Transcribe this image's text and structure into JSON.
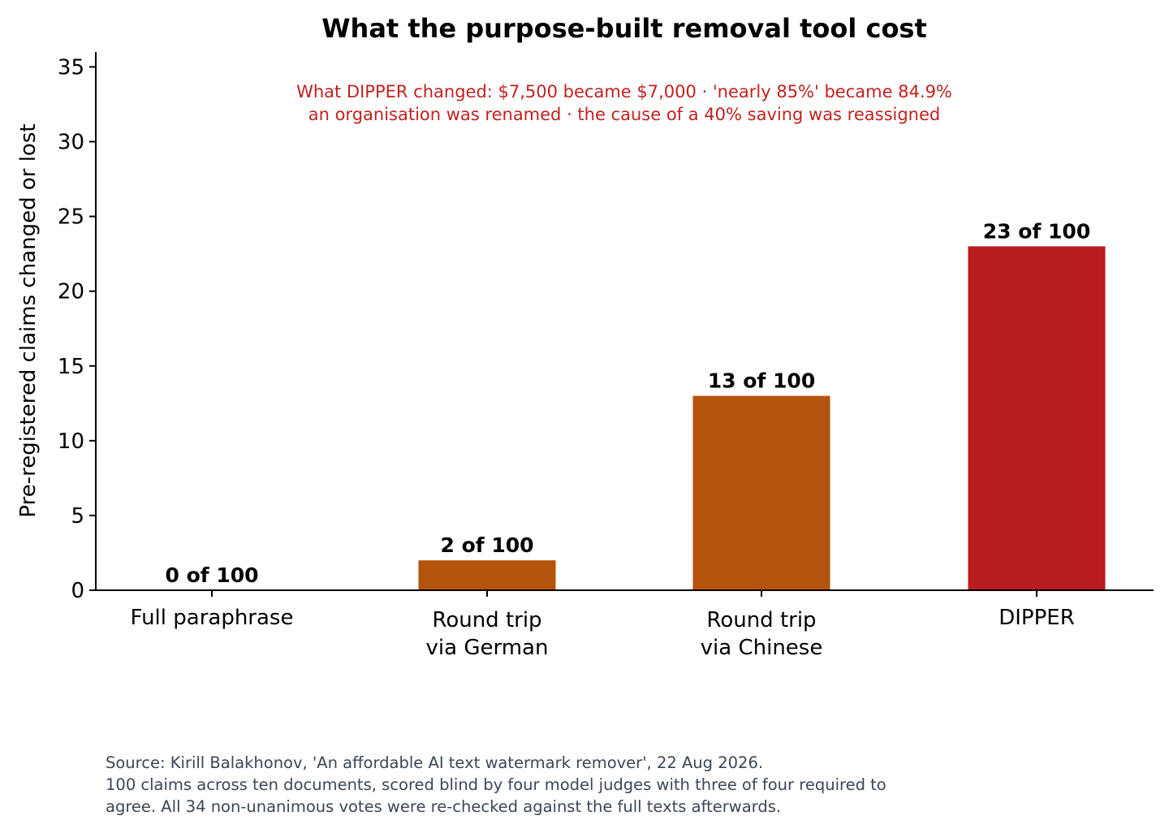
{
  "chart_data": {
    "type": "bar",
    "title": "What the purpose-built removal tool cost",
    "annotation": [
      "What DIPPER changed:  $7,500 became $7,000  ·  'nearly 85%' became 84.9%",
      "an organisation was renamed  ·  the cause of a 40% saving was reassigned"
    ],
    "ylabel": "Pre-registered claims changed or lost",
    "xlabel": "",
    "ylim": [
      0,
      36
    ],
    "yticks": [
      0,
      5,
      10,
      15,
      20,
      25,
      30,
      35
    ],
    "grid": false,
    "categories": [
      [
        "Full paraphrase"
      ],
      [
        "Round trip",
        "via German"
      ],
      [
        "Round trip",
        "via Chinese"
      ],
      [
        "DIPPER"
      ]
    ],
    "values": [
      0,
      2,
      13,
      23
    ],
    "data_labels": [
      "0 of 100",
      "2 of 100",
      "13 of 100",
      "23 of 100"
    ],
    "colors": [
      "#b4530b",
      "#b4530b",
      "#b4530b",
      "#b71c1e"
    ],
    "annotation_color": "#c0231f"
  },
  "source": {
    "lines": [
      "Source: Kirill Balakhonov, 'An affordable AI text watermark remover', 22 Aug 2026.",
      "100 claims across ten documents, scored blind by four model judges with three of four required to",
      "agree. All 34 non-unanimous votes were re-checked against the full texts afterwards."
    ]
  }
}
